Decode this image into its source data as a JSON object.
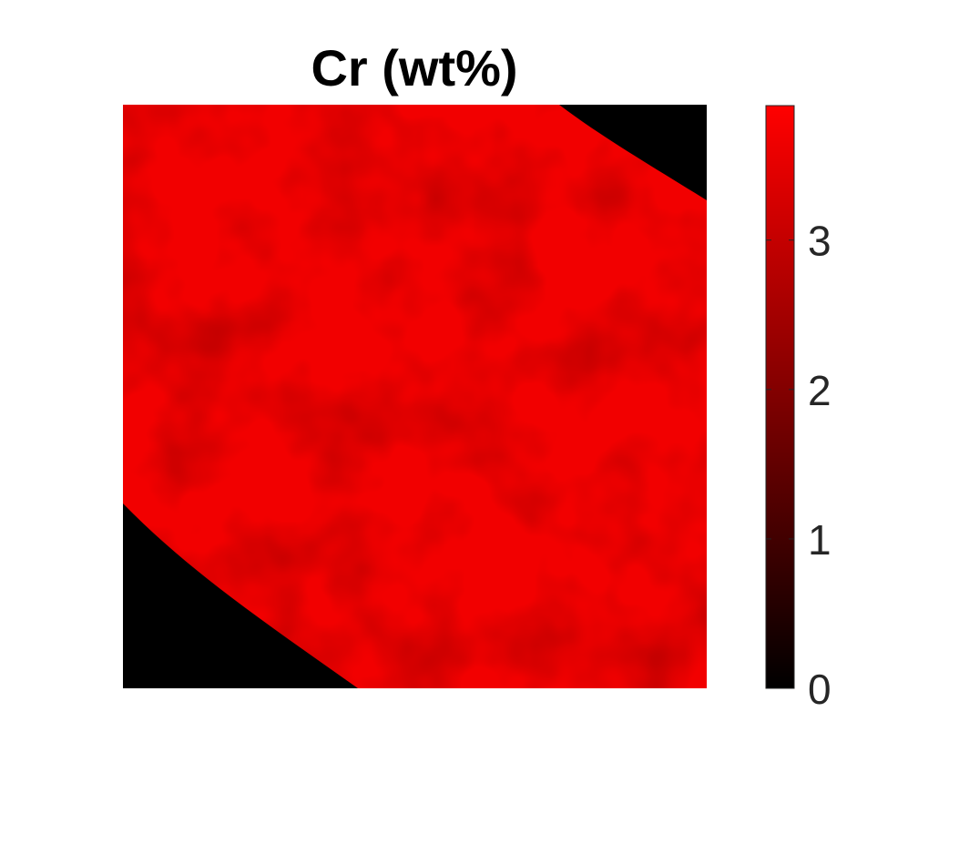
{
  "chart_data": {
    "type": "heatmap",
    "title": "Cr (wt%)",
    "xlabel": "",
    "ylabel": "",
    "grid": false,
    "axes_visible": false,
    "colormap": {
      "name": "black-to-red",
      "low_color": "#000000",
      "high_color": "#ff0000"
    },
    "colorbar": {
      "orientation": "vertical",
      "location": "right",
      "range": [
        0,
        3.9
      ],
      "ticks": [
        0,
        1,
        2,
        3
      ],
      "tick_labels": [
        "0",
        "1",
        "2",
        "3"
      ]
    },
    "map": {
      "description_region": "curved band of sample material; top-right corner and bottom-left corner are outside the sample (value 0)",
      "background_value": 0,
      "sample_mean_value": 3.6,
      "sample_value_range": [
        3.4,
        3.9
      ]
    }
  },
  "colors": {
    "background": "#ffffff",
    "text": "#262626",
    "title_text": "#000000"
  }
}
